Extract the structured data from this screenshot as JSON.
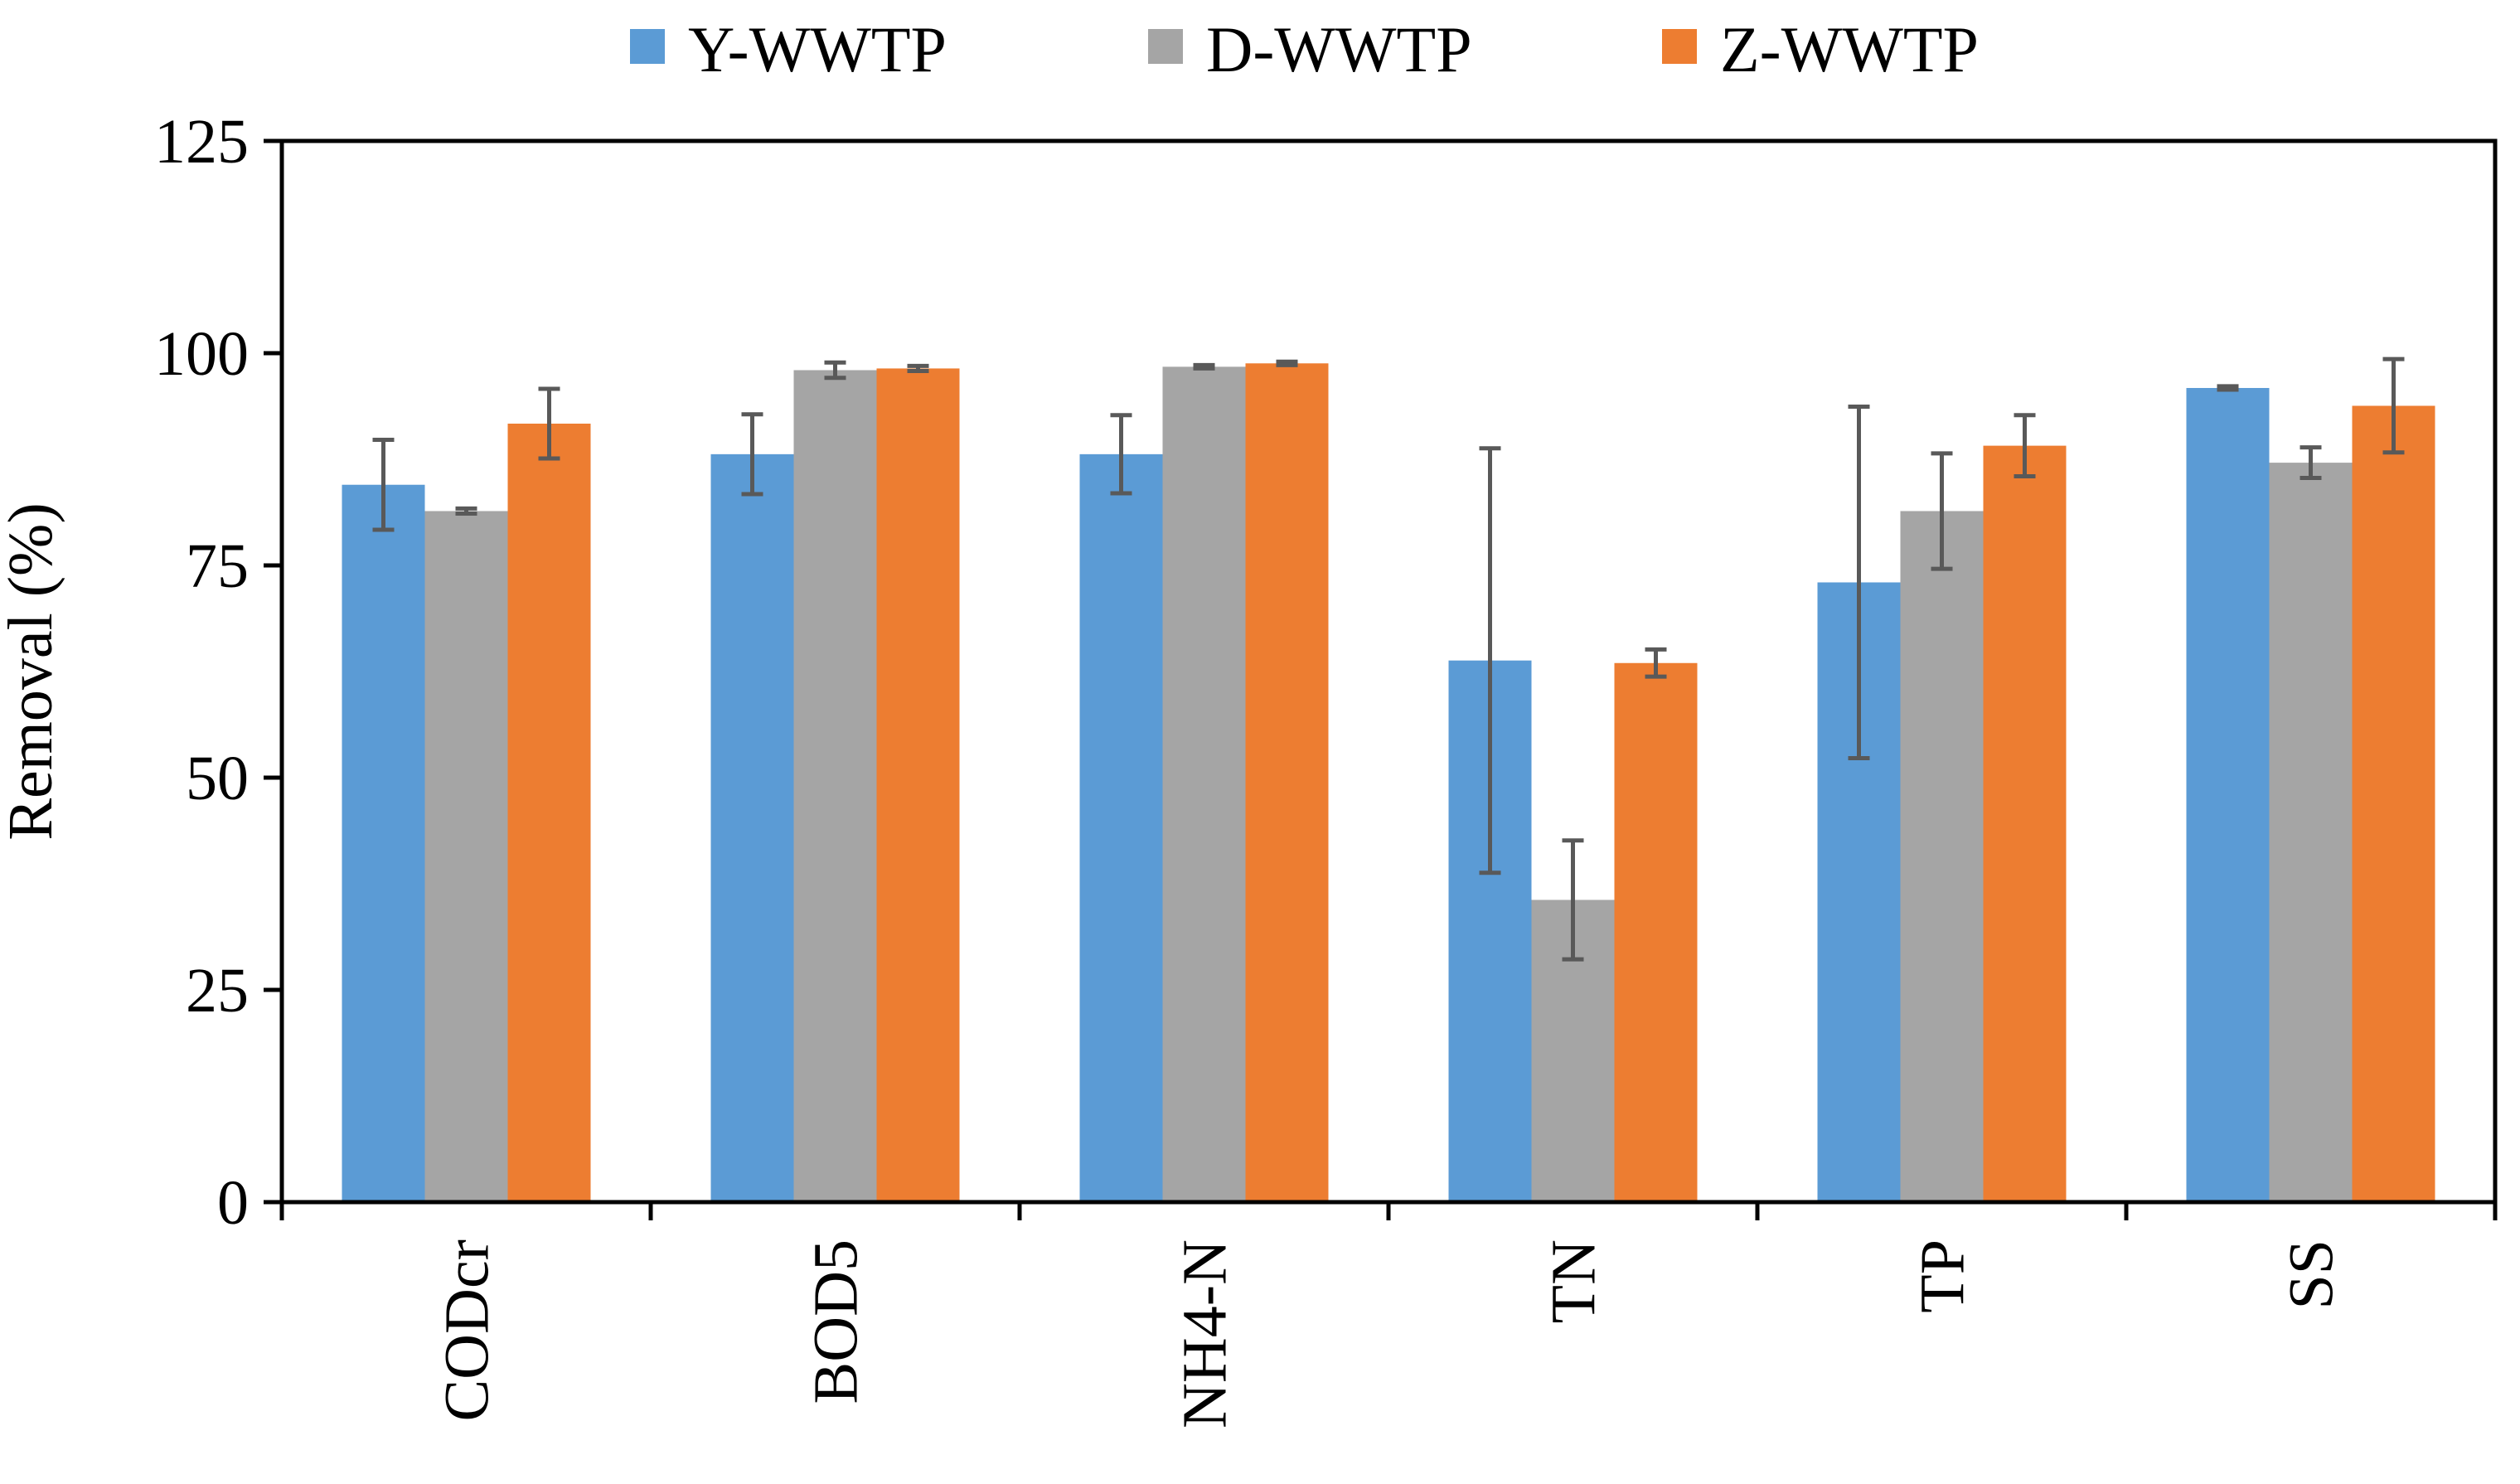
{
  "chart_data": {
    "type": "bar",
    "title": "",
    "xlabel": "",
    "ylabel": "Removal (%)",
    "ylim": [
      0,
      125
    ],
    "yticks": [
      0,
      25,
      50,
      75,
      100,
      125
    ],
    "categories": [
      "CODcr",
      "BOD5",
      "NH4-N",
      "TN",
      "TP",
      "SS"
    ],
    "series": [
      {
        "name": "Y-WWTP",
        "color": "#5B9BD5",
        "values": [
          84.5,
          88.1,
          88.1,
          63.8,
          73.0,
          95.9
        ],
        "errors": [
          5.3,
          4.7,
          4.6,
          25.0,
          20.7,
          0.2
        ]
      },
      {
        "name": "D-WWTP",
        "color": "#A5A5A5",
        "values": [
          81.4,
          98.0,
          98.4,
          35.6,
          81.4,
          87.1
        ],
        "errors": [
          0.3,
          0.9,
          0.2,
          7.0,
          6.8,
          1.8
        ]
      },
      {
        "name": "Z-WWTP",
        "color": "#ED7D31",
        "values": [
          91.7,
          98.2,
          98.8,
          63.5,
          89.1,
          93.8
        ],
        "errors": [
          4.1,
          0.3,
          0.2,
          1.6,
          3.6,
          5.5
        ]
      }
    ],
    "legend_position": "top",
    "grid": false,
    "error_bar_color": "#595959"
  }
}
